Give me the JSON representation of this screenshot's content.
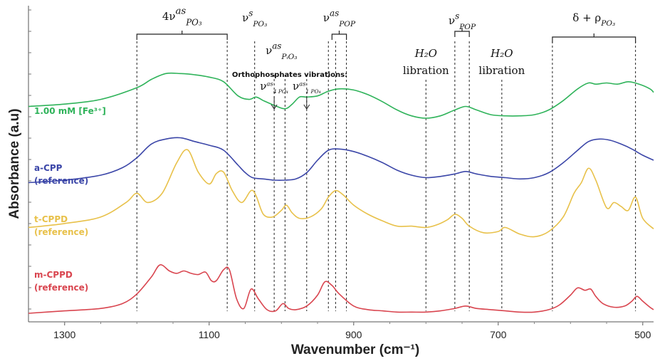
{
  "chart_data": {
    "type": "line",
    "xlabel": "Wavenumber (cm⁻¹)",
    "ylabel": "Absorbance (a.u)",
    "xlim": [
      1350,
      485
    ],
    "x_reversed": true,
    "x_ticks": [
      "1300",
      "1100",
      "900",
      "700",
      "500"
    ],
    "y_tick_labels": "none",
    "grid": false,
    "series": [
      {
        "name": "1.00 mM [Fe³⁺]",
        "color": "#2fb35a",
        "label_lines": [
          "1.00 mM [Fe³⁺]"
        ],
        "x": [
          1350,
          1300,
          1250,
          1200,
          1180,
          1160,
          1140,
          1120,
          1100,
          1080,
          1060,
          1045,
          1035,
          1025,
          1010,
          995,
          985,
          975,
          965,
          950,
          935,
          920,
          900,
          880,
          860,
          840,
          820,
          800,
          780,
          760,
          745,
          730,
          710,
          690,
          670,
          650,
          630,
          610,
          590,
          575,
          565,
          550,
          535,
          520,
          505,
          490,
          485
        ],
        "y": [
          0.7,
          0.72,
          0.76,
          0.86,
          0.93,
          0.98,
          0.98,
          0.97,
          0.95,
          0.91,
          0.79,
          0.76,
          0.78,
          0.75,
          0.71,
          0.68,
          0.72,
          0.78,
          0.78,
          0.79,
          0.83,
          0.85,
          0.84,
          0.8,
          0.74,
          0.67,
          0.62,
          0.6,
          0.62,
          0.67,
          0.7,
          0.67,
          0.63,
          0.62,
          0.62,
          0.63,
          0.67,
          0.75,
          0.85,
          0.9,
          0.89,
          0.9,
          0.89,
          0.91,
          0.89,
          0.85,
          0.82
        ]
      },
      {
        "name": "a-CPP (reference)",
        "color": "#3b46a8",
        "label_lines": [
          "a-CPP",
          "(reference)"
        ],
        "x": [
          1350,
          1300,
          1250,
          1220,
          1200,
          1180,
          1160,
          1140,
          1120,
          1100,
          1080,
          1060,
          1050,
          1040,
          1025,
          1010,
          995,
          980,
          965,
          950,
          935,
          920,
          900,
          880,
          860,
          840,
          820,
          800,
          780,
          760,
          745,
          730,
          710,
          690,
          670,
          650,
          630,
          610,
          590,
          575,
          560,
          545,
          530,
          515,
          500,
          485
        ],
        "y": [
          0.42,
          0.44,
          0.48,
          0.54,
          0.62,
          0.73,
          0.77,
          0.78,
          0.75,
          0.72,
          0.68,
          0.56,
          0.5,
          0.46,
          0.45,
          0.44,
          0.44,
          0.45,
          0.5,
          0.6,
          0.68,
          0.69,
          0.67,
          0.63,
          0.58,
          0.52,
          0.48,
          0.46,
          0.47,
          0.49,
          0.51,
          0.49,
          0.47,
          0.46,
          0.45,
          0.46,
          0.5,
          0.58,
          0.68,
          0.75,
          0.77,
          0.76,
          0.73,
          0.69,
          0.64,
          0.6
        ]
      },
      {
        "name": "t-CPPD (reference)",
        "color": "#e8c14a",
        "label_lines": [
          "t-CPPD",
          "(reference)"
        ],
        "x": [
          1350,
          1300,
          1250,
          1215,
          1200,
          1185,
          1165,
          1145,
          1130,
          1115,
          1100,
          1090,
          1080,
          1068,
          1055,
          1042,
          1035,
          1025,
          1012,
          1000,
          993,
          985,
          975,
          960,
          945,
          935,
          925,
          915,
          900,
          880,
          860,
          840,
          820,
          800,
          785,
          770,
          760,
          750,
          740,
          720,
          700,
          690,
          670,
          650,
          630,
          610,
          595,
          585,
          575,
          565,
          550,
          540,
          530,
          520,
          510,
          500,
          485
        ],
        "y": [
          0.3,
          0.33,
          0.38,
          0.49,
          0.56,
          0.49,
          0.56,
          0.79,
          0.89,
          0.72,
          0.63,
          0.71,
          0.72,
          0.58,
          0.49,
          0.58,
          0.54,
          0.4,
          0.38,
          0.43,
          0.47,
          0.41,
          0.37,
          0.38,
          0.44,
          0.53,
          0.58,
          0.55,
          0.47,
          0.4,
          0.35,
          0.31,
          0.31,
          0.3,
          0.32,
          0.36,
          0.4,
          0.37,
          0.31,
          0.26,
          0.27,
          0.3,
          0.25,
          0.23,
          0.27,
          0.38,
          0.56,
          0.64,
          0.75,
          0.66,
          0.45,
          0.49,
          0.46,
          0.43,
          0.53,
          0.37,
          0.29
        ]
      },
      {
        "name": "m-CPPD (reference)",
        "color": "#d9454f",
        "label_lines": [
          "m-CPPD",
          "(reference)"
        ],
        "x": [
          1350,
          1300,
          1250,
          1220,
          1200,
          1180,
          1168,
          1155,
          1145,
          1135,
          1125,
          1115,
          1105,
          1097,
          1090,
          1080,
          1072,
          1062,
          1052,
          1042,
          1032,
          1020,
          1008,
          998,
          990,
          980,
          965,
          950,
          940,
          930,
          920,
          900,
          880,
          860,
          840,
          820,
          800,
          780,
          760,
          745,
          730,
          710,
          690,
          670,
          650,
          630,
          615,
          600,
          590,
          580,
          572,
          565,
          555,
          540,
          525,
          515,
          508,
          500,
          490,
          485
        ],
        "y": [
          0.0,
          0.02,
          0.04,
          0.08,
          0.16,
          0.3,
          0.4,
          0.35,
          0.33,
          0.35,
          0.33,
          0.32,
          0.34,
          0.27,
          0.27,
          0.36,
          0.36,
          0.12,
          0.04,
          0.2,
          0.12,
          0.03,
          0.02,
          0.08,
          0.04,
          0.03,
          0.06,
          0.15,
          0.26,
          0.23,
          0.16,
          0.06,
          0.03,
          0.02,
          0.01,
          0.01,
          0.01,
          0.02,
          0.04,
          0.06,
          0.04,
          0.03,
          0.02,
          0.01,
          0.01,
          0.03,
          0.07,
          0.15,
          0.21,
          0.19,
          0.2,
          0.14,
          0.08,
          0.05,
          0.06,
          0.1,
          0.14,
          0.1,
          0.05,
          0.03
        ]
      }
    ],
    "vertical_markers": [
      1200,
      1075,
      1037,
      1010,
      995,
      965,
      935,
      925,
      910,
      800,
      760,
      740,
      695,
      625,
      510
    ],
    "annotations": [
      {
        "label": "4νₐₛ PO₃",
        "main": "4ν",
        "sup": "as",
        "sub": "PO₃",
        "from": 1200,
        "to": 1075,
        "brace": true
      },
      {
        "label": "νˢ PO₃",
        "main": "ν",
        "sup": "s",
        "sub": "PO₃",
        "at": 1037
      },
      {
        "label": "ν POP (as)",
        "main": "ν",
        "sup": "as",
        "sub": "POP",
        "from": 930,
        "to": 910,
        "brace": true
      },
      {
        "label": "ν POP (s)",
        "main": "ν",
        "sup": "s",
        "sub": "POP",
        "from": 760,
        "to": 740,
        "brace": true
      },
      {
        "label": "δ PO₃ + ρ PO₃",
        "main": "δ + ρ",
        "sup": "",
        "sub": "PO₃",
        "from": 625,
        "to": 510,
        "brace": true
      },
      {
        "label": "ν PO₃ (as)",
        "main": "ν",
        "sup": "as",
        "sub": "PᵢO₃",
        "at": 1000
      },
      {
        "label": "H₂O libration",
        "main": "H₂O",
        "line2": "libration",
        "at": 800
      },
      {
        "label": "H₂O libration",
        "main": "H₂O",
        "line2": "libration",
        "at": 695
      }
    ],
    "ortho_label": "Orthophosphates vibrations:",
    "ortho_bands": [
      {
        "label": "ν₄ PO₄ (as)",
        "main": "ν",
        "sup": "as",
        "sub": "4 PO₄",
        "at": 1010
      },
      {
        "label": "ν₁ PO₄ (as)",
        "main": "ν",
        "sup": "as",
        "sub": "1 PO₄",
        "at": 965
      }
    ]
  }
}
